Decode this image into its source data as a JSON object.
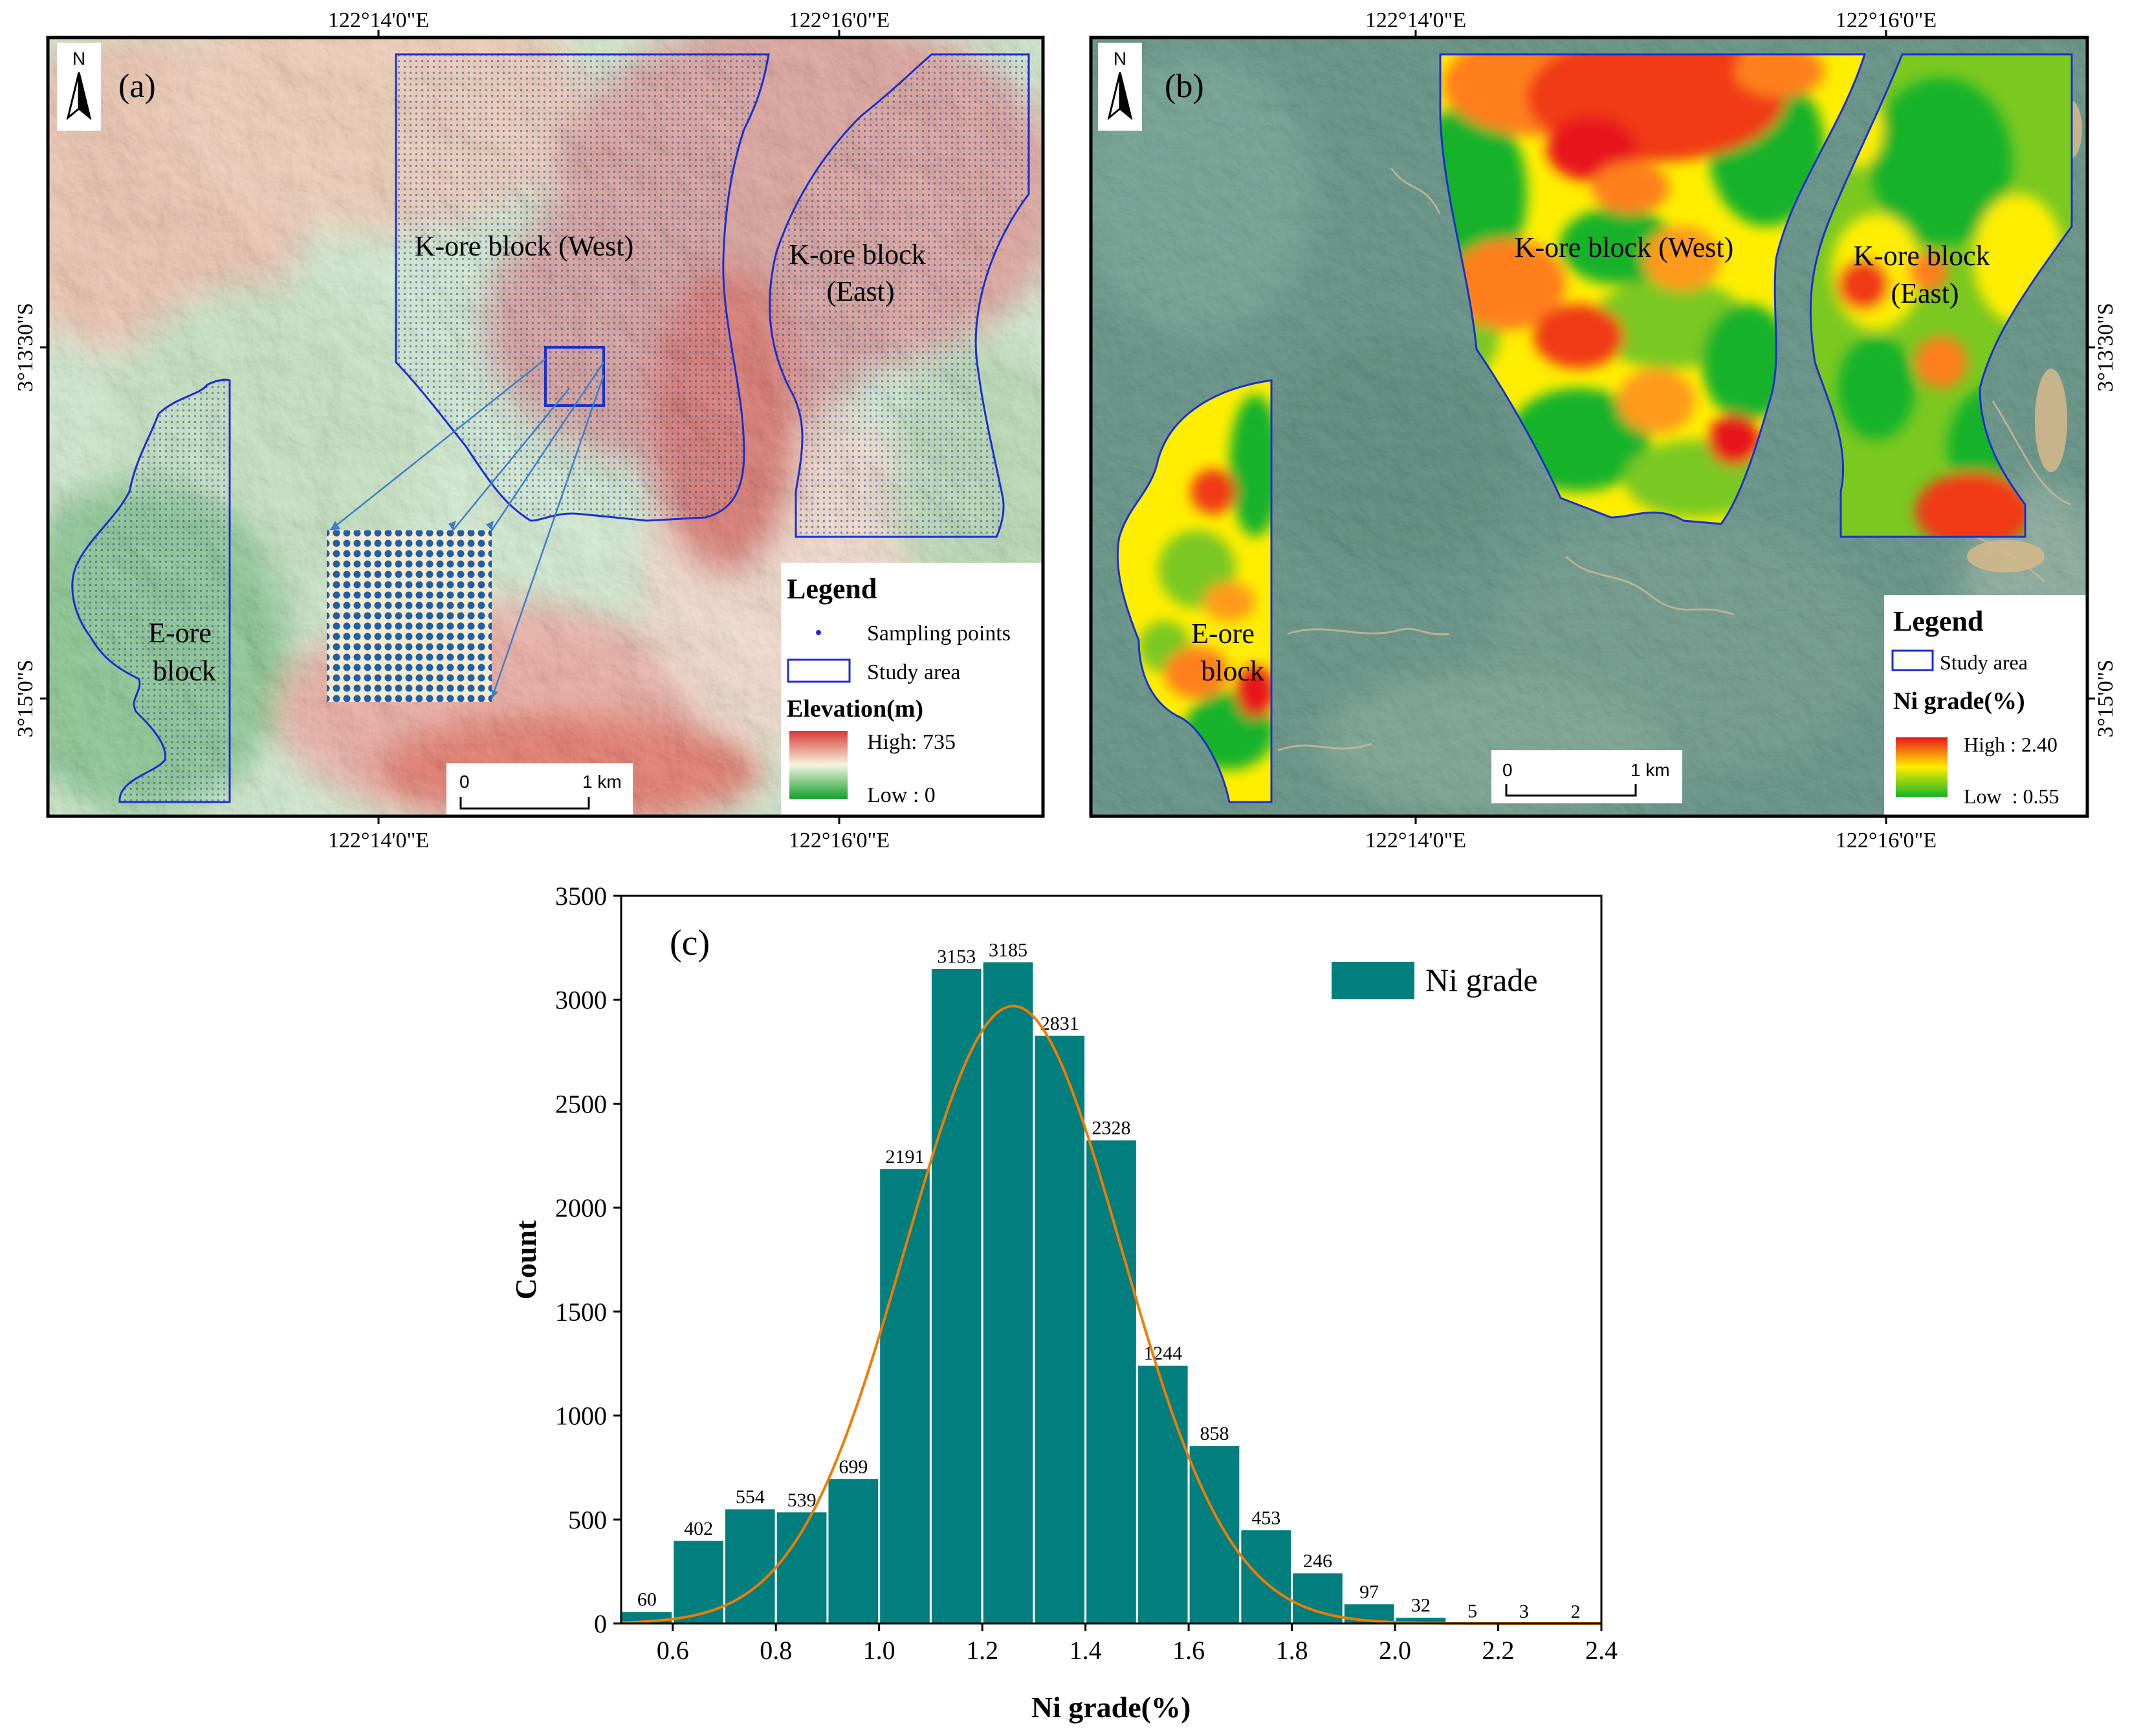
{
  "map_a": {
    "label": "(a)",
    "north": "N",
    "top_ticks": [
      "122°14'0\"E",
      "122°16'0\"E"
    ],
    "bottom_ticks": [
      "122°14'0\"E",
      "122°16'0\"E"
    ],
    "left_ticks": [
      "3°13'30\"S",
      "3°15'0\"S"
    ],
    "k_west_label": "K-ore block (West)",
    "k_east_label_1": "K-ore block",
    "k_east_label_2": "(East)",
    "e_label_1": "E-ore",
    "e_label_2": "block",
    "scale_0": "0",
    "scale_1": "1 km",
    "legend": {
      "title": "Legend",
      "sampling": "Sampling points",
      "study_area": "Study area",
      "elevation_title": "Elevation(m)",
      "high": "High: 735",
      "low": "Low : 0",
      "colors": {
        "high": "#d83a35",
        "mid": "#f7f4e0",
        "low": "#12a02c"
      }
    }
  },
  "map_b": {
    "label": "(b)",
    "north": "N",
    "top_ticks": [
      "122°14'0\"E",
      "122°16'0\"E"
    ],
    "bottom_ticks": [
      "122°14'0\"E",
      "122°16'0\"E"
    ],
    "right_ticks": [
      "3°13'30\"S",
      "3°15'0\"S"
    ],
    "k_west_label": "K-ore block (West)",
    "k_east_label_1": "K-ore block",
    "k_east_label_2": "(East)",
    "e_label_1": "E-ore",
    "e_label_2": "block",
    "scale_0": "0",
    "scale_1": "1 km",
    "legend": {
      "title": "Legend",
      "study_area": "Study area",
      "grade_title": "Ni grade(%)",
      "high": "High : 2.40",
      "low": "Low  : 0.55",
      "colors": {
        "high": "#e8171b",
        "mid": "#ffee00",
        "low": "#17b428"
      }
    }
  },
  "chart_data": {
    "type": "bar",
    "label": "(c)",
    "title": "",
    "xlabel": "Ni grade(%)",
    "ylabel": "Count",
    "xlim": [
      0.5,
      2.4
    ],
    "ylim": [
      0,
      3500
    ],
    "bin_width": 0.1,
    "bin_starts": [
      0.5,
      0.6,
      0.7,
      0.8,
      0.9,
      1.0,
      1.1,
      1.2,
      1.3,
      1.4,
      1.5,
      1.6,
      1.7,
      1.8,
      1.9,
      2.0,
      2.1,
      2.2,
      2.3
    ],
    "values": [
      60,
      402,
      554,
      539,
      699,
      2191,
      3153,
      3185,
      2831,
      2328,
      1244,
      858,
      453,
      246,
      97,
      32,
      5,
      3,
      2
    ],
    "x_ticks": [
      "0.6",
      "0.8",
      "1.0",
      "1.2",
      "1.4",
      "1.6",
      "1.8",
      "2.0",
      "2.2",
      "2.4"
    ],
    "x_tick_values": [
      0.6,
      0.8,
      1.0,
      1.2,
      1.4,
      1.6,
      1.8,
      2.0,
      2.2,
      2.4
    ],
    "y_ticks": [
      "0",
      "500",
      "1000",
      "1500",
      "2000",
      "2500",
      "3000",
      "3500"
    ],
    "y_tick_values": [
      0,
      500,
      1000,
      1500,
      2000,
      2500,
      3000,
      3500
    ],
    "legend": "Ni grade",
    "fit_curve": {
      "type": "normal",
      "mean": 1.26,
      "sd": 0.21,
      "peak": 2970
    },
    "bar_color": "#007f7e",
    "curve_color": "#f07c00"
  }
}
